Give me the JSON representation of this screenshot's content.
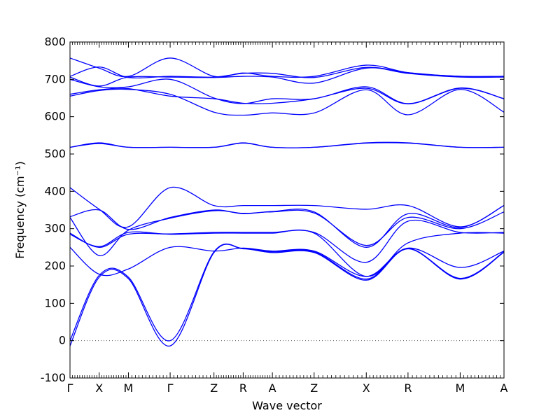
{
  "chart_data": {
    "type": "line",
    "xlabel": "Wave vector",
    "ylabel": "Frequency (cm⁻¹)",
    "ylim": [
      -100,
      800
    ],
    "yticks": [
      -100,
      0,
      100,
      200,
      300,
      400,
      500,
      600,
      700,
      800
    ],
    "grid": false,
    "legend": "none",
    "line_color": "#0000ff",
    "zero_line": {
      "value": 0,
      "style": "dotted",
      "color": "#555555"
    },
    "xticks": [
      {
        "label": "Γ",
        "x": 0.0
      },
      {
        "label": "X",
        "x": 0.7
      },
      {
        "label": "M",
        "x": 1.4
      },
      {
        "label": "Γ",
        "x": 2.4
      },
      {
        "label": "Z",
        "x": 3.45
      },
      {
        "label": "R",
        "x": 4.15
      },
      {
        "label": "A",
        "x": 4.85
      },
      {
        "label": "Z",
        "x": 5.85
      },
      {
        "label": "X",
        "x": 7.1
      },
      {
        "label": "R",
        "x": 8.1
      },
      {
        "label": "M",
        "x": 9.35
      },
      {
        "label": "A",
        "x": 10.4
      }
    ],
    "bands": [
      {
        "x": [
          0,
          0.7,
          1.4,
          2.4,
          3.45,
          4.15,
          4.85,
          5.85,
          7.1,
          8.1,
          9.35,
          10.4
        ],
        "values": [
          757,
          730,
          708,
          757,
          708,
          717,
          708,
          708,
          738,
          718,
          708,
          708
        ]
      },
      {
        "x": [
          0,
          0.7,
          1.4,
          2.4,
          3.45,
          4.15,
          4.85,
          5.85,
          7.1,
          8.1,
          9.35,
          10.4
        ],
        "values": [
          708,
          733,
          705,
          708,
          706,
          716,
          716,
          705,
          732,
          718,
          708,
          708
        ]
      },
      {
        "x": [
          0,
          0.7,
          1.4,
          2.4,
          3.45,
          4.15,
          4.85,
          5.85,
          7.1,
          8.1,
          9.35,
          10.4
        ],
        "values": [
          706,
          682,
          706,
          706,
          705,
          708,
          706,
          690,
          730,
          716,
          706,
          706
        ]
      },
      {
        "x": [
          0,
          0.7,
          1.4,
          2.4,
          3.45,
          4.15,
          4.85,
          5.85,
          7.1,
          8.1,
          9.35,
          10.4
        ],
        "values": [
          700,
          680,
          680,
          700,
          650,
          635,
          648,
          648,
          680,
          635,
          677,
          648
        ]
      },
      {
        "x": [
          0,
          0.7,
          1.4,
          2.4,
          3.45,
          4.15,
          4.85,
          5.85,
          7.1,
          8.1,
          9.35,
          10.4
        ],
        "values": [
          660,
          672,
          675,
          655,
          648,
          636,
          636,
          648,
          676,
          634,
          676,
          648
        ]
      },
      {
        "x": [
          0,
          0.7,
          1.4,
          2.4,
          3.45,
          4.15,
          4.85,
          5.85,
          7.1,
          8.1,
          9.35,
          10.4
        ],
        "values": [
          655,
          670,
          673,
          660,
          612,
          604,
          610,
          610,
          672,
          605,
          673,
          612
        ]
      },
      {
        "x": [
          0,
          0.7,
          1.4,
          2.4,
          3.45,
          4.15,
          4.85,
          5.85,
          7.1,
          8.1,
          9.35,
          10.4
        ],
        "values": [
          518,
          530,
          518,
          518,
          518,
          530,
          518,
          518,
          530,
          530,
          518,
          518
        ]
      },
      {
        "x": [
          0,
          0.7,
          1.4,
          2.4,
          3.45,
          4.15,
          4.85,
          5.85,
          7.1,
          8.1,
          9.35,
          10.4
        ],
        "values": [
          518,
          528,
          518,
          518,
          518,
          529,
          518,
          518,
          529,
          529,
          518,
          518
        ]
      },
      {
        "x": [
          0,
          0.7,
          1.4,
          2.4,
          3.45,
          4.15,
          4.85,
          5.85,
          7.1,
          8.1,
          9.35,
          10.4
        ],
        "values": [
          410,
          352,
          305,
          410,
          362,
          362,
          362,
          362,
          352,
          362,
          305,
          362
        ]
      },
      {
        "x": [
          0,
          0.7,
          1.4,
          2.4,
          3.45,
          4.15,
          4.85,
          5.85,
          7.1,
          8.1,
          9.35,
          10.4
        ],
        "values": [
          332,
          350,
          298,
          330,
          350,
          340,
          346,
          345,
          250,
          340,
          303,
          362
        ]
      },
      {
        "x": [
          0,
          0.7,
          1.4,
          2.4,
          3.45,
          4.15,
          4.85,
          5.85,
          7.1,
          8.1,
          9.35,
          10.4
        ],
        "values": [
          330,
          228,
          296,
          328,
          348,
          341,
          345,
          342,
          255,
          330,
          300,
          345
        ]
      },
      {
        "x": [
          0,
          0.7,
          1.4,
          2.4,
          3.45,
          4.15,
          4.85,
          5.85,
          7.1,
          8.1,
          9.35,
          10.4
        ],
        "values": [
          288,
          250,
          285,
          286,
          290,
          290,
          290,
          290,
          210,
          320,
          290,
          290
        ]
      },
      {
        "x": [
          0,
          0.7,
          1.4,
          2.4,
          3.45,
          4.15,
          4.85,
          5.85,
          7.1,
          8.1,
          9.35,
          10.4
        ],
        "values": [
          285,
          252,
          290,
          285,
          288,
          288,
          288,
          288,
          172,
          262,
          288,
          288
        ]
      },
      {
        "x": [
          0,
          0.7,
          1.4,
          2.4,
          3.45,
          4.15,
          4.85,
          5.85,
          7.1,
          8.1,
          9.35,
          10.4
        ],
        "values": [
          250,
          178,
          192,
          250,
          240,
          248,
          240,
          240,
          172,
          248,
          196,
          240
        ]
      },
      {
        "x": [
          0,
          0.7,
          1.4,
          2.4,
          3.45,
          4.15,
          4.85,
          5.85,
          7.1,
          8.1,
          9.35,
          10.4
        ],
        "values": [
          0,
          175,
          170,
          0,
          238,
          247,
          238,
          238,
          165,
          247,
          167,
          238
        ]
      },
      {
        "x": [
          0,
          0.7,
          1.4,
          2.4,
          3.45,
          4.15,
          4.85,
          5.85,
          7.1,
          8.1,
          9.35,
          10.4
        ],
        "values": [
          -14,
          170,
          166,
          -14,
          236,
          246,
          236,
          236,
          162,
          246,
          165,
          237
        ]
      }
    ]
  }
}
